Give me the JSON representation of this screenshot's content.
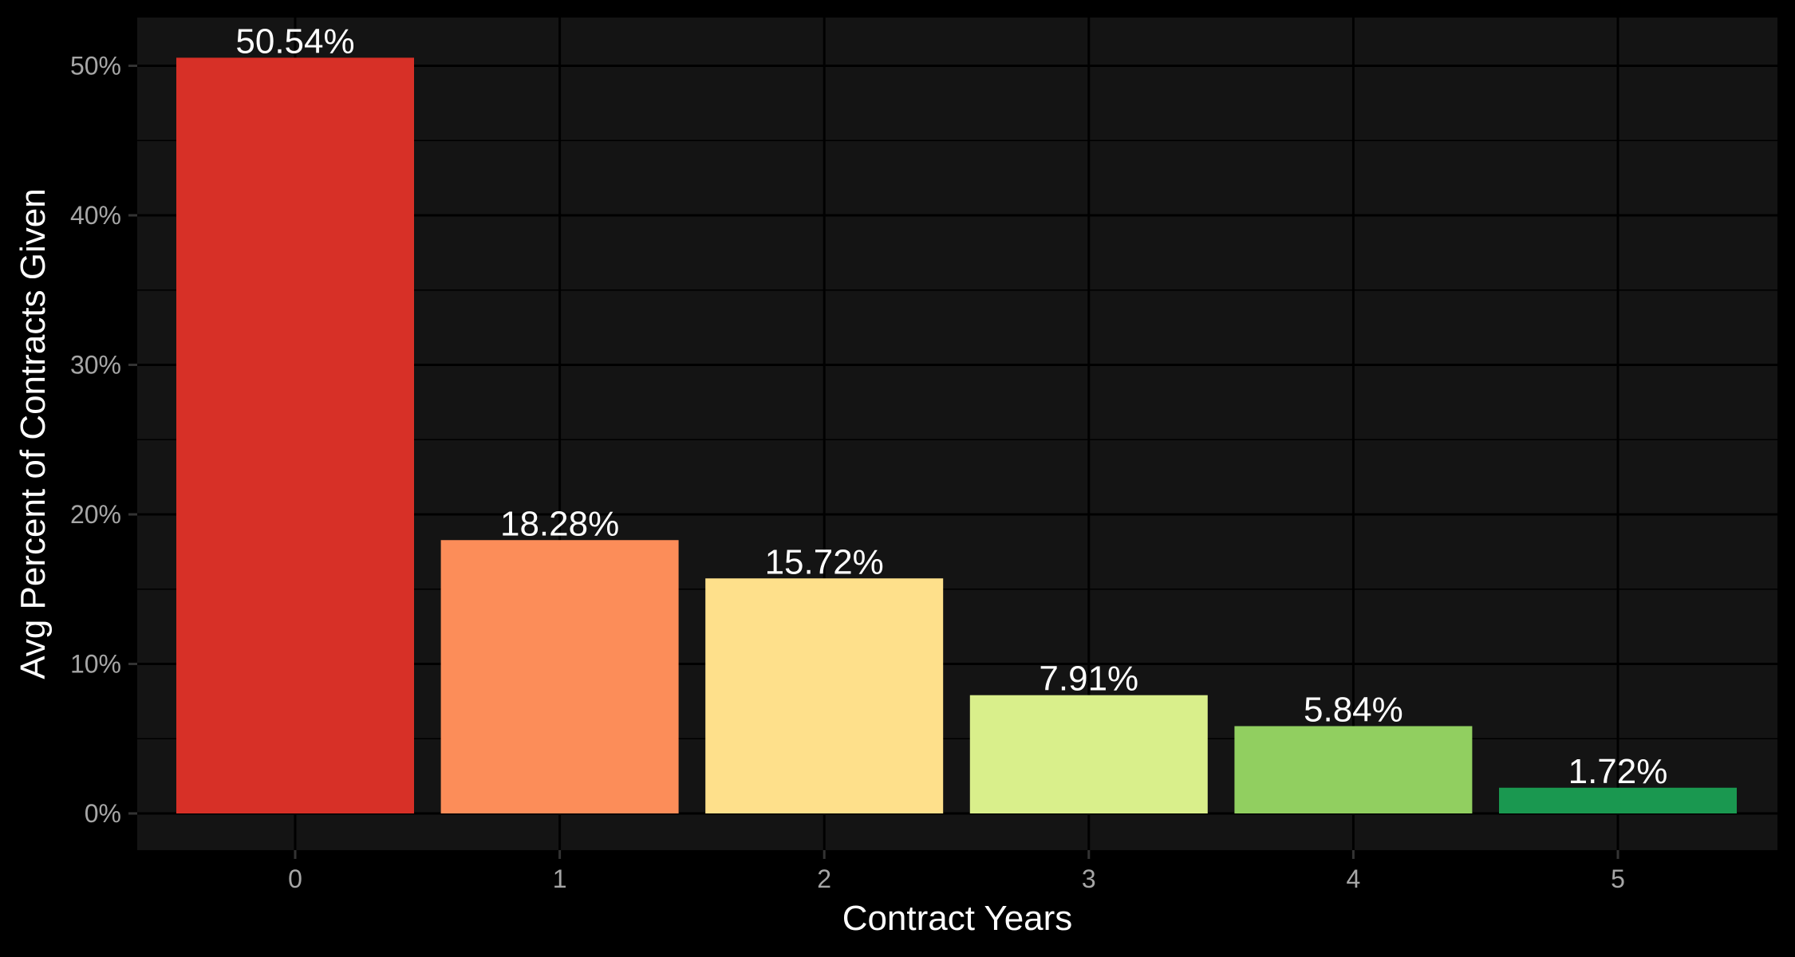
{
  "chart_data": {
    "type": "bar",
    "categories": [
      "0",
      "1",
      "2",
      "3",
      "4",
      "5"
    ],
    "values": [
      50.54,
      18.28,
      15.72,
      7.91,
      5.84,
      1.72
    ],
    "data_labels": [
      "50.54%",
      "18.28%",
      "15.72%",
      "7.91%",
      "5.84%",
      "1.72%"
    ],
    "bar_colors": [
      "#d73027",
      "#fc8d59",
      "#fee08b",
      "#d9ef8b",
      "#91cf60",
      "#1a9850"
    ],
    "title": "",
    "xlabel": "Contract Years",
    "ylabel": "Avg Percent of Contracts Given",
    "ylim": [
      0,
      52.7
    ],
    "yticks": [
      0,
      10,
      20,
      30,
      40,
      50
    ],
    "ytick_labels": [
      "0%",
      "10%",
      "20%",
      "30%",
      "40%",
      "50%"
    ],
    "grid": true,
    "legend": "none",
    "colors": {
      "page_background": "#000000",
      "panel_background": "#141414",
      "grid": "#000000",
      "tick_text": "#a6a6a6",
      "label_text": "#ffffff"
    }
  }
}
